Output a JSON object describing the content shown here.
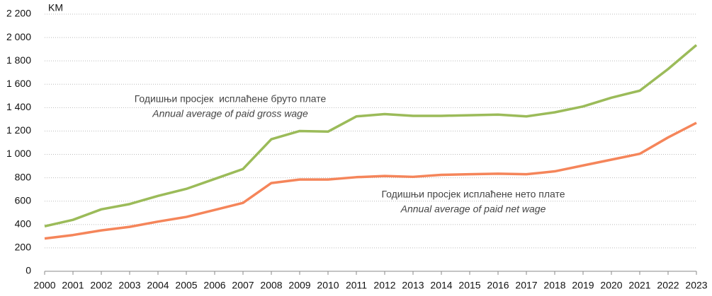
{
  "chart_data": {
    "type": "line",
    "y_unit": "KM",
    "categories": [
      "2000",
      "2001",
      "2002",
      "2003",
      "2004",
      "2005",
      "2006",
      "2007",
      "2008",
      "2009",
      "2010",
      "2011",
      "2012",
      "2013",
      "2014",
      "2015",
      "2016",
      "2017",
      "2018",
      "2019",
      "2020",
      "2021",
      "2022",
      "2023"
    ],
    "series": [
      {
        "color": "#9bbb59",
        "values": [
          385,
          440,
          530,
          575,
          645,
          705,
          790,
          875,
          1130,
          1200,
          1195,
          1325,
          1345,
          1330,
          1330,
          1335,
          1340,
          1325,
          1360,
          1410,
          1485,
          1545,
          1730,
          1935
        ]
      },
      {
        "color": "#f5855a",
        "values": [
          280,
          310,
          350,
          380,
          425,
          465,
          525,
          585,
          755,
          785,
          785,
          805,
          815,
          808,
          825,
          830,
          835,
          830,
          855,
          905,
          955,
          1005,
          1145,
          1270
        ]
      }
    ],
    "annotations": [
      [
        "Годишњи просјек  исплаћене бруто плате",
        "Annual average of paid gross wage"
      ],
      [
        "Годишњи просјек исплаћене нето плате",
        "Annual average of paid net wage"
      ]
    ],
    "ylim": [
      0,
      2200
    ],
    "yticks": [
      0,
      200,
      400,
      600,
      800,
      {
        "value": 1000,
        "label": "1 000"
      },
      {
        "value": 1200,
        "label": "1 200"
      },
      {
        "value": 1400,
        "label": "1 400"
      },
      {
        "value": 1600,
        "label": "1 600"
      },
      {
        "value": 1800,
        "label": "1 800"
      },
      {
        "value": 2000,
        "label": "2 000"
      },
      {
        "value": 2200,
        "label": "2 200"
      }
    ],
    "grid": true
  }
}
